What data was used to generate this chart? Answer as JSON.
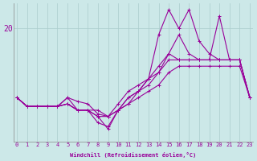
{
  "bg_color": "#cce8e8",
  "line_color": "#990099",
  "grid_color": "#aacccc",
  "xlabel": "Windchill (Refroidissement éolien,°C)",
  "ylabel_tick": "20",
  "x_ticks": [
    0,
    1,
    2,
    3,
    4,
    5,
    6,
    7,
    8,
    9,
    10,
    11,
    12,
    13,
    14,
    15,
    16,
    17,
    18,
    19,
    20,
    21,
    22,
    23
  ],
  "xlim": [
    -0.3,
    23.3
  ],
  "ylim": [
    11,
    22
  ],
  "ytick_val": 20,
  "series": [
    [
      14.5,
      13.8,
      13.8,
      13.8,
      13.8,
      14.5,
      14.2,
      14.0,
      13.2,
      13.0,
      14.0,
      15.0,
      15.5,
      16.0,
      17.0,
      18.0,
      17.5,
      17.5,
      17.5,
      17.5,
      21.0,
      17.5,
      17.5,
      14.5
    ],
    [
      14.5,
      13.8,
      13.8,
      13.8,
      13.8,
      14.0,
      13.5,
      13.5,
      13.0,
      12.0,
      13.5,
      14.5,
      15.0,
      16.0,
      19.5,
      21.5,
      20.0,
      21.5,
      19.0,
      18.0,
      17.5,
      17.5,
      17.5,
      14.5
    ],
    [
      14.5,
      13.8,
      13.8,
      13.8,
      13.8,
      14.0,
      13.5,
      13.5,
      12.5,
      12.2,
      13.5,
      14.0,
      15.0,
      15.5,
      16.5,
      18.0,
      19.5,
      18.0,
      17.5,
      17.5,
      17.5,
      17.5,
      17.5,
      14.5
    ],
    [
      14.5,
      13.8,
      13.8,
      13.8,
      13.8,
      14.0,
      13.5,
      13.5,
      13.0,
      13.0,
      13.5,
      14.0,
      14.5,
      15.0,
      15.5,
      16.5,
      17.0,
      17.0,
      17.0,
      17.0,
      17.0,
      17.0,
      17.0,
      14.5
    ],
    [
      14.5,
      13.8,
      13.8,
      13.8,
      13.8,
      14.5,
      13.5,
      13.5,
      13.5,
      13.0,
      13.5,
      14.5,
      15.0,
      16.0,
      16.5,
      17.5,
      17.5,
      17.5,
      17.5,
      17.5,
      17.5,
      17.5,
      17.5,
      14.5
    ]
  ],
  "marker": "+",
  "markersize": 3,
  "linewidth": 0.8,
  "tick_fontsize": 5,
  "xlabel_fontsize": 5,
  "ytick_fontsize": 7
}
